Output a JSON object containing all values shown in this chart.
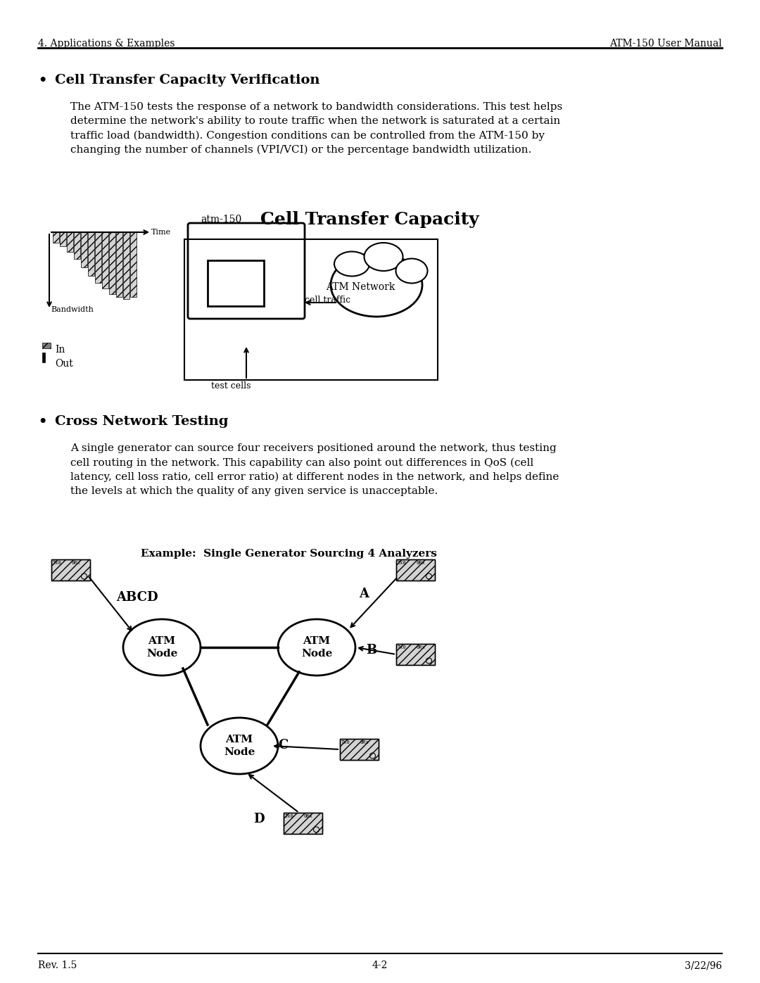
{
  "page_header_left": "4. Applications & Examples",
  "page_header_right": "ATM-150 User Manual",
  "page_footer_left": "Rev. 1.5",
  "page_footer_center": "4-2",
  "page_footer_right": "3/22/96",
  "section1_bullet": "Cell Transfer Capacity Verification",
  "section1_text": "The ATM-150 tests the response of a network to bandwidth considerations. This test helps\ndetermine the network's ability to route traffic when the network is saturated at a certain\ntraffic load (bandwidth). Congestion conditions can be controlled from the ATM-150 by\nchanging the number of channels (VPI/VCI) or the percentage bandwidth utilization.",
  "diagram1_title": "Cell Transfer Capacity",
  "diagram1_bw_label": "Bandwidth",
  "diagram1_time_label": "Time",
  "diagram1_atm_label": "atm-150",
  "diagram1_cell_traffic": "cell traffic",
  "diagram1_atm_network": "ATM Network",
  "diagram1_test_cells": "test cells",
  "diagram1_in_label": "In",
  "diagram1_out_label": "Out",
  "section2_bullet": "Cross Network Testing",
  "section2_text": "A single generator can source four receivers positioned around the network, thus testing\ncell routing in the network. This capability can also point out differences in QoS (cell\nlatency, cell loss ratio, cell error ratio) at different nodes in the network, and helps define\nthe levels at which the quality of any given service is unacceptable.",
  "diagram2_title": "Example:  Single Generator Sourcing 4 Analyzers",
  "diagram2_abcd": "ABCD",
  "diagram2_a": "A",
  "diagram2_b": "B",
  "diagram2_c": "C",
  "diagram2_d": "D",
  "diagram2_node": "ATM\nNode",
  "bg_color": "#ffffff",
  "text_color": "#000000",
  "header_font_size": 10,
  "body_font_size": 11
}
